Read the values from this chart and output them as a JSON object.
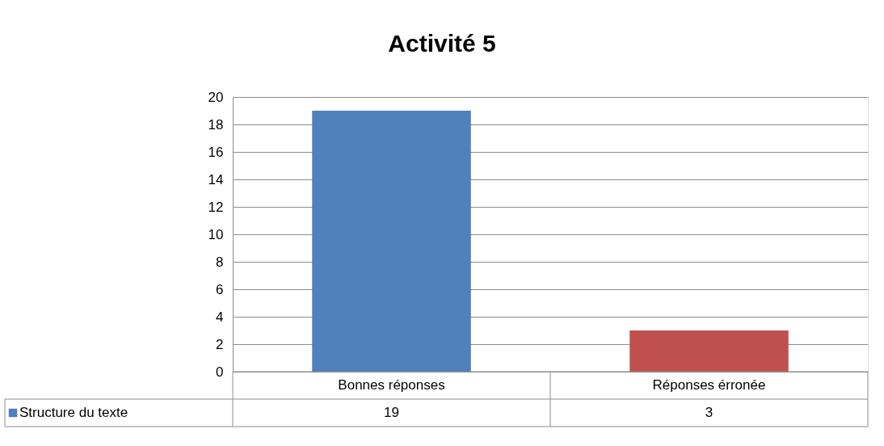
{
  "chart_data": {
    "type": "bar",
    "title": "Activité 5",
    "categories": [
      "Bonnes réponses",
      "Réponses érronée"
    ],
    "series": [
      {
        "name": "Structure du texte",
        "values": [
          19,
          3
        ]
      }
    ],
    "colors": [
      "#4f81bd",
      "#c0504d"
    ],
    "ylim": [
      0,
      20
    ],
    "yticks": [
      0,
      2,
      4,
      6,
      8,
      10,
      12,
      14,
      16,
      18,
      20
    ],
    "grid": "y",
    "data_labels": true,
    "legend": "bottom"
  }
}
